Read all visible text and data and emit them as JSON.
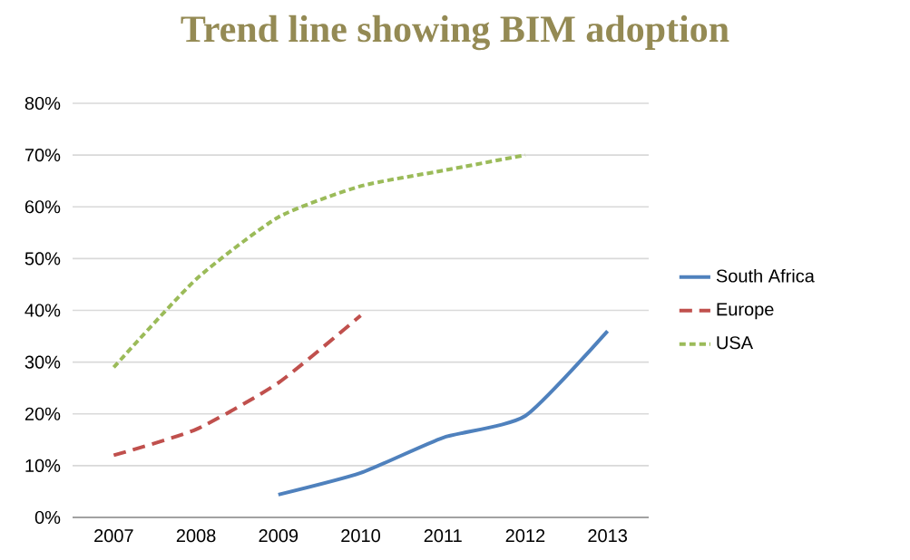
{
  "chart_data": {
    "type": "line",
    "title": "Trend line showing BIM adoption",
    "categories": [
      "2007",
      "2008",
      "2009",
      "2010",
      "2011",
      "2012",
      "2013"
    ],
    "series": [
      {
        "name": "South Africa",
        "color": "#4f81bd",
        "line_style": "solid",
        "values": [
          null,
          null,
          4.4,
          8.6,
          15.4,
          19.6,
          36
        ]
      },
      {
        "name": "Europe",
        "color": "#c0504d",
        "line_style": "dashed",
        "values": [
          12,
          17,
          26,
          39,
          null,
          null,
          null
        ]
      },
      {
        "name": "USA",
        "color": "#9bbb59",
        "line_style": "dotted",
        "values": [
          29,
          46,
          58,
          64,
          67,
          70,
          null
        ]
      }
    ],
    "ylim": [
      0,
      80
    ],
    "yticks": [
      {
        "value": 0,
        "label": "0%"
      },
      {
        "value": 10,
        "label": "10%"
      },
      {
        "value": 20,
        "label": "20%"
      },
      {
        "value": 30,
        "label": "30%"
      },
      {
        "value": 40,
        "label": "40%"
      },
      {
        "value": 50,
        "label": "50%"
      },
      {
        "value": 60,
        "label": "60%"
      },
      {
        "value": 70,
        "label": "70%"
      },
      {
        "value": 80,
        "label": "80%"
      }
    ],
    "grid": "y",
    "legend": "right",
    "marker": "none"
  }
}
